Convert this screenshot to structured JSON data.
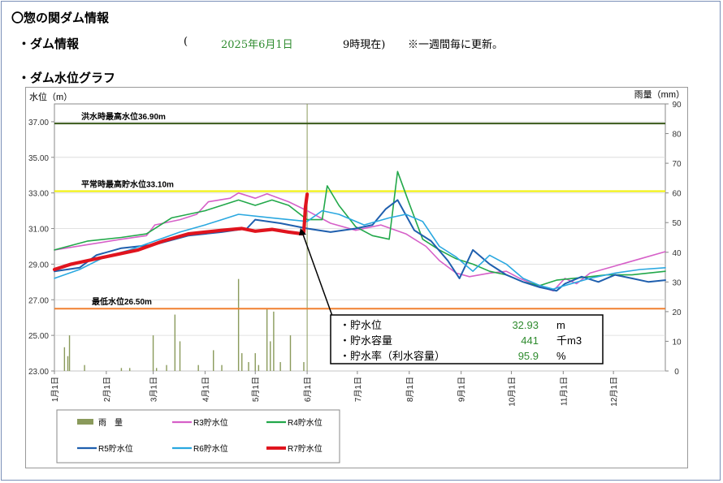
{
  "page": {
    "title": "〇惣の関ダム情報",
    "section_dam_info": "・ダム情報",
    "info_open": "(",
    "info_date": "2025年6月1日",
    "info_time": "9時現在)",
    "info_note": "※一週間毎に更新。",
    "section_graph": "・ダム水位グラフ"
  },
  "colors": {
    "rain": "#8a9a5b",
    "R3": "#d660c8",
    "R4": "#22a84a",
    "R5": "#1f5fae",
    "R6": "#2aa8e0",
    "R7": "#e0141e",
    "flood_line": "#3a5a1a",
    "normal_line": "#f0f000",
    "min_line": "#f08030",
    "accent_green": "#2e8b2e"
  },
  "chart_data": {
    "type": "line",
    "left_axis_label": "水位（m）",
    "right_axis_label": "雨量（mm）",
    "y_left_range": [
      23,
      38
    ],
    "y_left_ticks": [
      "37.00",
      "35.00",
      "33.00",
      "31.00",
      "29.00",
      "27.00",
      "25.00",
      "23.00"
    ],
    "y_right_range": [
      0,
      90
    ],
    "y_right_ticks": [
      "90",
      "80",
      "70",
      "60",
      "50",
      "40",
      "30",
      "20",
      "10",
      "0"
    ],
    "x_range_days": [
      0,
      365
    ],
    "x_ticks": [
      {
        "label": "1月1日",
        "day": 0
      },
      {
        "label": "2月1日",
        "day": 31
      },
      {
        "label": "3月1日",
        "day": 59
      },
      {
        "label": "4月1日",
        "day": 90
      },
      {
        "label": "5月1日",
        "day": 120
      },
      {
        "label": "6月1日",
        "day": 151
      },
      {
        "label": "7月1日",
        "day": 181
      },
      {
        "label": "8月1日",
        "day": 212
      },
      {
        "label": "9月1日",
        "day": 243
      },
      {
        "label": "10月1日",
        "day": 273
      },
      {
        "label": "11月1日",
        "day": 304
      },
      {
        "label": "12月1日",
        "day": 334
      }
    ],
    "reference_lines": [
      {
        "label": "洪水時最高水位36.90m",
        "value": 36.9,
        "color": "#3a5a1a"
      },
      {
        "label": "平常時最高貯水位33.10m",
        "value": 33.1,
        "color": "#f0f000"
      },
      {
        "label": "最低水位26.50m",
        "value": 26.5,
        "color": "#f08030"
      }
    ],
    "current_day_marker": 151,
    "legend": [
      "雨　量",
      "R3貯水位",
      "R4貯水位",
      "R5貯水位",
      "R6貯水位",
      "R7貯水位"
    ],
    "series": [
      {
        "name": "R3貯水位",
        "color": "#d660c8",
        "width": 1.6,
        "points": [
          [
            0,
            29.8
          ],
          [
            20,
            30.1
          ],
          [
            40,
            30.4
          ],
          [
            55,
            30.6
          ],
          [
            60,
            31.2
          ],
          [
            75,
            31.5
          ],
          [
            85,
            31.8
          ],
          [
            92,
            32.5
          ],
          [
            105,
            32.7
          ],
          [
            110,
            33.0
          ],
          [
            120,
            32.7
          ],
          [
            127,
            32.95
          ],
          [
            140,
            32.5
          ],
          [
            151,
            32.0
          ],
          [
            165,
            31.3
          ],
          [
            180,
            30.9
          ],
          [
            195,
            31.2
          ],
          [
            210,
            30.7
          ],
          [
            222,
            30.0
          ],
          [
            230,
            29.2
          ],
          [
            240,
            28.5
          ],
          [
            248,
            28.3
          ],
          [
            260,
            28.5
          ],
          [
            270,
            28.6
          ],
          [
            278,
            28.2
          ],
          [
            288,
            27.8
          ],
          [
            298,
            27.5
          ],
          [
            305,
            28.2
          ],
          [
            312,
            27.9
          ],
          [
            320,
            28.5
          ],
          [
            335,
            28.9
          ],
          [
            350,
            29.3
          ],
          [
            365,
            29.7
          ]
        ]
      },
      {
        "name": "R4貯水位",
        "color": "#22a84a",
        "width": 1.6,
        "points": [
          [
            0,
            29.8
          ],
          [
            20,
            30.3
          ],
          [
            40,
            30.5
          ],
          [
            55,
            30.7
          ],
          [
            70,
            31.6
          ],
          [
            90,
            32.0
          ],
          [
            100,
            32.3
          ],
          [
            110,
            32.6
          ],
          [
            120,
            32.3
          ],
          [
            130,
            32.6
          ],
          [
            140,
            32.3
          ],
          [
            151,
            31.5
          ],
          [
            160,
            31.5
          ],
          [
            163,
            33.4
          ],
          [
            170,
            32.3
          ],
          [
            180,
            31.1
          ],
          [
            190,
            30.6
          ],
          [
            200,
            30.4
          ],
          [
            205,
            34.2
          ],
          [
            212,
            32.4
          ],
          [
            220,
            30.4
          ],
          [
            230,
            29.8
          ],
          [
            240,
            29.3
          ],
          [
            250,
            29.0
          ],
          [
            260,
            28.6
          ],
          [
            270,
            28.4
          ],
          [
            280,
            28.0
          ],
          [
            290,
            27.8
          ],
          [
            300,
            28.1
          ],
          [
            310,
            28.2
          ],
          [
            320,
            28.3
          ],
          [
            330,
            28.4
          ],
          [
            345,
            28.4
          ],
          [
            365,
            28.6
          ]
        ]
      },
      {
        "name": "R5貯水位",
        "color": "#1f5fae",
        "width": 2,
        "points": [
          [
            0,
            28.6
          ],
          [
            15,
            28.8
          ],
          [
            25,
            29.5
          ],
          [
            40,
            29.9
          ],
          [
            60,
            30.1
          ],
          [
            80,
            30.6
          ],
          [
            100,
            30.8
          ],
          [
            115,
            31.0
          ],
          [
            120,
            31.5
          ],
          [
            135,
            31.3
          ],
          [
            151,
            31.0
          ],
          [
            165,
            30.8
          ],
          [
            180,
            31.0
          ],
          [
            190,
            31.2
          ],
          [
            198,
            32.1
          ],
          [
            205,
            32.6
          ],
          [
            215,
            30.9
          ],
          [
            225,
            30.3
          ],
          [
            235,
            29.2
          ],
          [
            242,
            28.2
          ],
          [
            250,
            29.8
          ],
          [
            260,
            29.0
          ],
          [
            270,
            28.4
          ],
          [
            280,
            28.0
          ],
          [
            290,
            27.7
          ],
          [
            300,
            27.5
          ],
          [
            305,
            27.9
          ],
          [
            315,
            28.3
          ],
          [
            325,
            28.0
          ],
          [
            335,
            28.4
          ],
          [
            345,
            28.2
          ],
          [
            355,
            28.0
          ],
          [
            365,
            28.1
          ]
        ]
      },
      {
        "name": "R6貯水位",
        "color": "#2aa8e0",
        "width": 1.6,
        "points": [
          [
            0,
            28.2
          ],
          [
            15,
            28.7
          ],
          [
            30,
            29.4
          ],
          [
            45,
            29.8
          ],
          [
            60,
            30.3
          ],
          [
            75,
            30.8
          ],
          [
            90,
            31.2
          ],
          [
            100,
            31.5
          ],
          [
            110,
            31.8
          ],
          [
            130,
            31.6
          ],
          [
            151,
            31.4
          ],
          [
            160,
            32.0
          ],
          [
            170,
            31.8
          ],
          [
            185,
            31.2
          ],
          [
            200,
            31.6
          ],
          [
            210,
            31.8
          ],
          [
            220,
            31.4
          ],
          [
            230,
            30.0
          ],
          [
            240,
            29.4
          ],
          [
            250,
            28.6
          ],
          [
            260,
            29.5
          ],
          [
            270,
            29.0
          ],
          [
            280,
            28.2
          ],
          [
            290,
            27.8
          ],
          [
            298,
            27.6
          ],
          [
            305,
            27.8
          ],
          [
            320,
            28.2
          ],
          [
            335,
            28.5
          ],
          [
            350,
            28.7
          ],
          [
            365,
            28.8
          ]
        ]
      },
      {
        "name": "R7貯水位",
        "color": "#e0141e",
        "width": 4.2,
        "points": [
          [
            0,
            28.7
          ],
          [
            10,
            29.0
          ],
          [
            20,
            29.2
          ],
          [
            35,
            29.5
          ],
          [
            50,
            29.8
          ],
          [
            65,
            30.3
          ],
          [
            80,
            30.7
          ],
          [
            100,
            30.9
          ],
          [
            112,
            31.0
          ],
          [
            120,
            30.85
          ],
          [
            130,
            30.95
          ],
          [
            140,
            30.8
          ],
          [
            148,
            30.7
          ],
          [
            149,
            30.8
          ],
          [
            150,
            32.2
          ],
          [
            151,
            32.93
          ]
        ]
      }
    ],
    "rain_bars": [
      {
        "day": 6,
        "mm": 8
      },
      {
        "day": 8,
        "mm": 5
      },
      {
        "day": 9,
        "mm": 12
      },
      {
        "day": 18,
        "mm": 2
      },
      {
        "day": 40,
        "mm": 1
      },
      {
        "day": 45,
        "mm": 1
      },
      {
        "day": 59,
        "mm": 12
      },
      {
        "day": 61,
        "mm": 1
      },
      {
        "day": 67,
        "mm": 2
      },
      {
        "day": 72,
        "mm": 19
      },
      {
        "day": 75,
        "mm": 10
      },
      {
        "day": 86,
        "mm": 2
      },
      {
        "day": 95,
        "mm": 7
      },
      {
        "day": 100,
        "mm": 2
      },
      {
        "day": 110,
        "mm": 31
      },
      {
        "day": 112,
        "mm": 6
      },
      {
        "day": 116,
        "mm": 3
      },
      {
        "day": 120,
        "mm": 6
      },
      {
        "day": 122,
        "mm": 2
      },
      {
        "day": 127,
        "mm": 21
      },
      {
        "day": 129,
        "mm": 10
      },
      {
        "day": 131,
        "mm": 20
      },
      {
        "day": 135,
        "mm": 3
      },
      {
        "day": 141,
        "mm": 12
      },
      {
        "day": 149,
        "mm": 3
      }
    ]
  },
  "readout": {
    "rows": [
      {
        "label": "・貯水位",
        "value": "32.93",
        "unit": "m"
      },
      {
        "label": "・貯水容量",
        "value": "441",
        "unit": "千m3"
      },
      {
        "label": "・貯水率（利水容量）",
        "value": "95.9",
        "unit": "%"
      }
    ]
  }
}
